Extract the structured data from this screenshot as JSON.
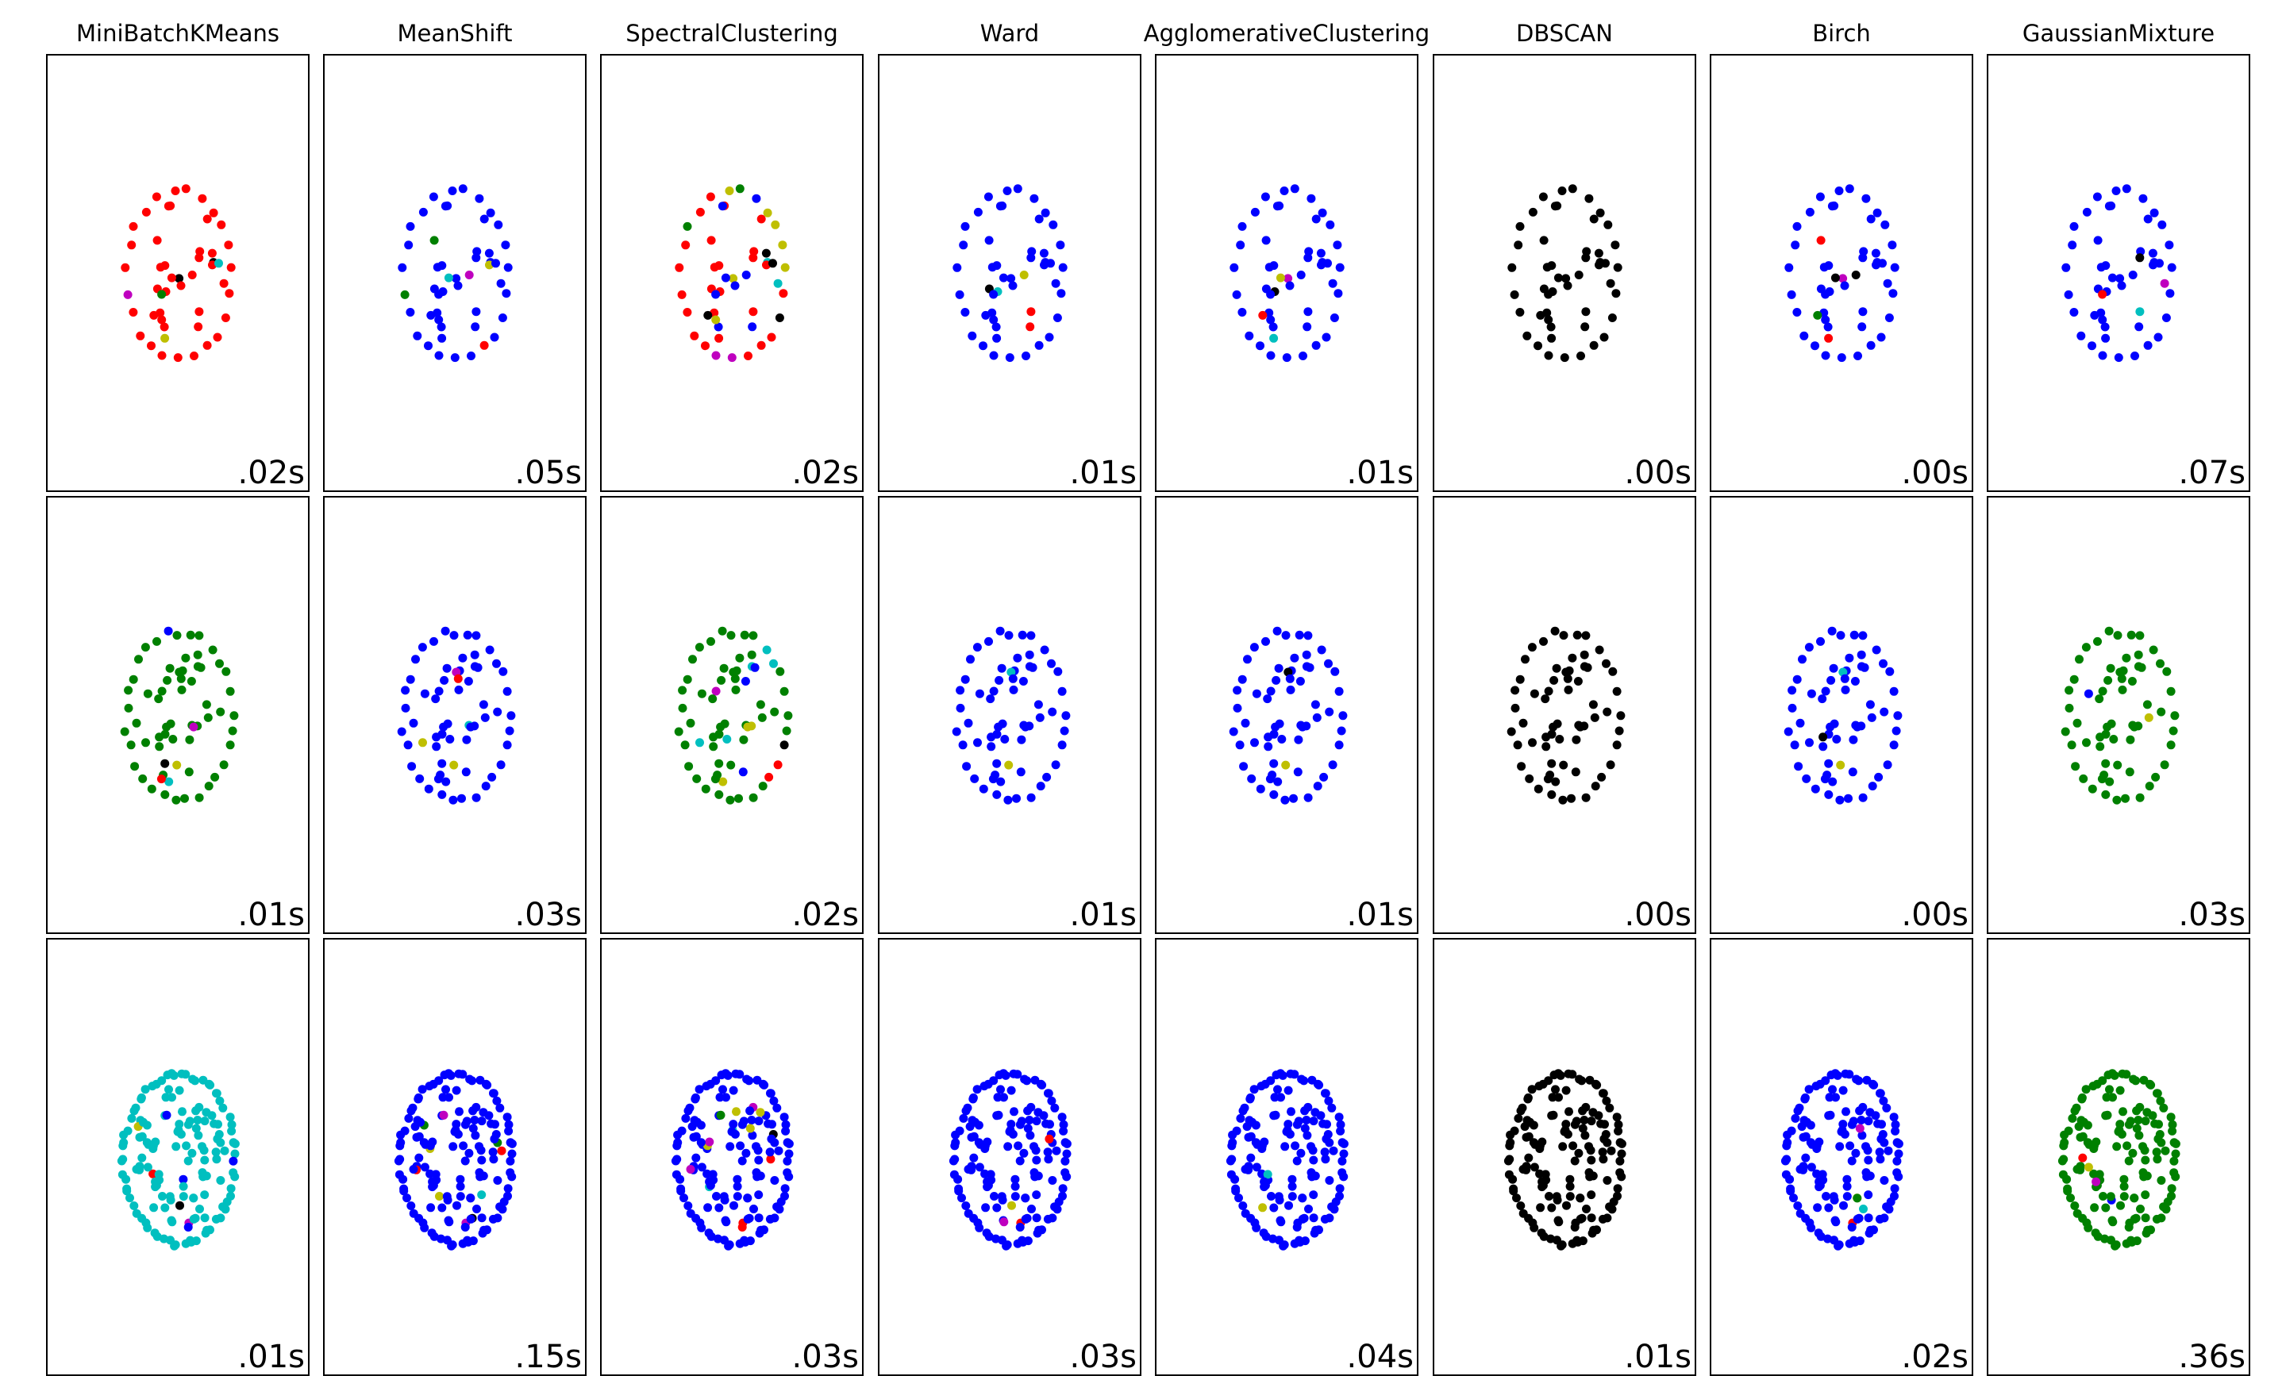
{
  "algorithms": [
    "MiniBatchKMeans",
    "MeanShift",
    "SpectralClustering",
    "Ward",
    "AgglomerativeClustering",
    "DBSCAN",
    "Birch",
    "GaussianMixture"
  ],
  "timings": [
    [
      ".02s",
      ".05s",
      ".02s",
      ".01s",
      ".01s",
      ".00s",
      ".00s",
      ".07s"
    ],
    [
      ".01s",
      ".03s",
      ".02s",
      ".01s",
      ".01s",
      ".00s",
      ".00s",
      ".03s"
    ],
    [
      ".01s",
      ".15s",
      ".03s",
      ".03s",
      ".04s",
      ".01s",
      ".02s",
      ".36s"
    ]
  ],
  "colors": {
    "b": "#0000ff",
    "g": "#008000",
    "r": "#ff0000",
    "c": "#00bfbf",
    "m": "#bf00bf",
    "y": "#bfbf00",
    "k": "#000000"
  },
  "chart_data": {
    "type": "scatter",
    "layout": "grid of 3 rows x 8 columns",
    "columns": [
      "MiniBatchKMeans",
      "MeanShift",
      "SpectralClustering",
      "Ward",
      "AgglomerativeClustering",
      "DBSCAN",
      "Birch",
      "GaussianMixture"
    ],
    "rows": [
      {
        "n_points": 50,
        "radius_x": 1.0,
        "radius_y": 1.55
      },
      {
        "n_points": 64,
        "radius_x": 1.0,
        "radius_y": 1.55
      },
      {
        "n_points": 150,
        "radius_x": 1.05,
        "radius_y": 1.55
      }
    ],
    "xlim": [
      -2.4,
      2.4
    ],
    "ylim": [
      -3.9,
      3.9
    ],
    "ticks": "none",
    "point_colors": [
      [
        "rrrrrrrrrrrrmrrrrrrrrrrrrrrrrkrrrcyrrrrrrrrrrrgkrr",
        "bbbbbbbbbbbbgbbbbbbrbbbbbbbbbbbbybbgbbbbbbmbbbbbcb",
        "yyyybgyrrgrrrrrrmmrrrkrcrrrrrcrrrkrrrrkbbybkbrbybb",
        "bbbbbbbbbbbbbbbbbbbbbbbbrbbbbbkcbbbbbbbbbbybrbbbbb",
        "bbbbbbbbbbbbbbbbbbbbbbbbbbbbbbbkbbcbbbbbbbbrbbbmyb",
        "kkkkkkkkkkkkkkkkkkkkkkkkkkkkkkkkkkkkkkkkkkkkkkkkkk",
        "bbbbbbbbbbbbbbbbbbbbbbbbbbbbbbbbbbrrbbbbbbkgbbbmkb",
        "bbbbbbbbbbbbbbbbbbbbbbbmcbbbbbbbbbbbbbbbbbbbbkrbbb"
      ],
      [
        "ggggggggbggggggggggggggggggggggggggggkgggggggggggggggcgggggymrggkg",
        "bbbbbbbbbbbbbbbbbbbbbbbbbbbbbbbbbbbybbbbbbbbbbbbbbbbbbbmbcrybbbb",
        "gggccggggggggggggggggggggrrkggcgcgmcggggggbgggggggggbyygggggygbg",
        "bbbbbbbbbbbbbbbbbbbbbbbbbbbbbbbbbbbbbbbbbbbbbbbbbbbbbbbcbbbybbbb",
        "bbbbbbbbbbbbbbbbbbbbbbbbbbbbbbbbbbbbbbbbbbbbbbbbbbbbbbbkbbbybbbb",
        "kkkkkkkkkkkkkkkkkkkkkkkkkkkkkkkkkkkkkkkkkkkkkkkkkkkkkkkkkkkkkkkk",
        "bbbbbbbbbbbbbbbbbbbbbbbbbbbbbbbbbbbbbbbbbbbbbbbbbbbbbbbcbbbybbbk",
        "gggggggggggggggggggggggggggggggggggggggbggggggggggggggggyggggggggy"
      ],
      [
        "cccccccccccccccccccccccccccccccccccccccccccccccccccccccccccccccccccbrcccccccccccccccccmcbbcccccccccccccccbcccccccccccccccccccccccccccccccckcyccccccccccc",
        "bbbbbbbbbbbbbbbbbbbbbbbbbbbbbbbbbbbbbbbbbbbbbbbbbbbbbbbbbbbbbbbbbbbbbbbbbbbbrbbkbbbbybmbbbbrbbbbbcbbbbyggmbbbbbbbbbbbbbbbbbbbbbbbbbbbbbbbbbbbbbbbbbbb",
        "bbbbbbbbbbbbbbbbbbbbbbbbbbbbbbbbbbbbbbbbbbbbbbbbbbbbbbbbbbbbbbbbbbbbbbbbbbbcbbcbbbbkbbrrrbbbbbbbbbbbbbbbbgbbbbyyyybbbbbmmmbbbbbbbbbbbbbbbbbbbbbbbbb",
        "bbbbbbbbbbbbbbbbbbbbbbbbbbbbbbbbbbbbbbbbbbbbbbbbbbbbbbbbbbbbbbbbbbbbbbbbbbbbbbbbbbbbbbrbbbbbbbbbbbbbbbbbbbbbbbbbbbbbbbbbbbbbbbbbbbbbbbmbbbyrbbbbbbbbbbbb",
        "bbbbbbbbbbbbbbbbbbbbbbbbbbbbbbbbbbbbbbbbbbbbbbbbbbbbbbbbbbbbbbbbbbbbbbbbbbbbbbbbbbbbbbbbbbbbbbbbbbbbbbbbbbbbbbbbbbbbbcbbbbbbbbbbbbbbbbbbbbbbbbbbybbbbbbg",
        "kkkkkkkkkkkkkkkkkkkkkkkkkkkkkkkkkkkkkkkkkkkkkkkkkkkkkkkkkkkkkkkkkkkkkkkkkkkkkkkkkkkkkkkkkkkkkkkkkkkkkkkkkkkkkkkkkkkkkkkkkkkkkkkkkkkkkkkkkkkkkkkkkkkkkkkkk",
        "bbbbbbbbbbbbbbbbbbbbbbbbbbbbbbbbbbbbbbbbbbbbbbbbbbbbbbbbbbbbbbbbbbbbbbbbbbbbbbbbbbbbbbrbbbbbbcbbbbbbbbbbbbbbbbbmbbbbbbbbbbbbybgbbbbbbbbbbbbbbbbbbbbbbbbb",
        "gggggggggggggggggggggggggggggggggggggggggggggggggggggggggggggggggggggggggggggggggggggggggggggggggggggggggggggggggggggggggggbggggggrggggggyggggggggggmgggc"
      ]
    ]
  }
}
